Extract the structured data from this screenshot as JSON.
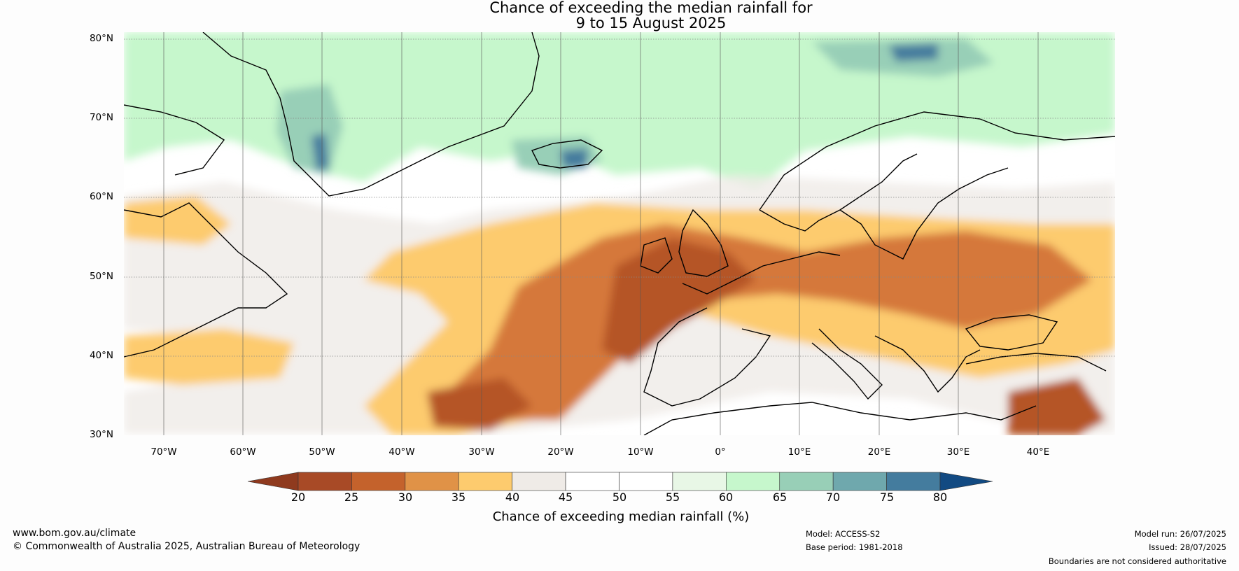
{
  "title_line1": "Chance of exceeding the median rainfall for",
  "title_line2": "9 to 15 August 2025",
  "lat_labels": [
    "80°N",
    "70°N",
    "60°N",
    "50°N",
    "40°N",
    "30°N"
  ],
  "lon_labels": [
    "70°W",
    "60°W",
    "50°W",
    "40°W",
    "30°W",
    "20°W",
    "10°W",
    "0°",
    "10°E",
    "20°E",
    "30°E",
    "40°E"
  ],
  "colorbar": {
    "label": "Chance of exceeding median rainfall (%)",
    "ticks": [
      "20",
      "25",
      "30",
      "35",
      "40",
      "45",
      "50",
      "55",
      "60",
      "65",
      "70",
      "75",
      "80"
    ],
    "under_color": "#8f3a1e",
    "over_color": "#124a82",
    "colors": [
      "#a84a26",
      "#c4622c",
      "#e09247",
      "#fdcb6e",
      "#efebe7",
      "#ffffff",
      "#ffffff",
      "#e8f7e6",
      "#c6f7cc",
      "#98cfb7",
      "#6fa8ad",
      "#447c9e"
    ]
  },
  "map_regions": {
    "dry_strong": "#b55428",
    "dry_moderate": "#d5783a",
    "dry_weak": "#fdcb6e",
    "neutral": "#efebe7",
    "wet_weak": "#c6f7cc",
    "wet_moderate": "#98cfb7",
    "wet_strong": "#447c9e"
  },
  "footer": {
    "website": "www.bom.gov.au/climate",
    "copyright": "© Commonwealth of Australia 2025, Australian Bureau of Meteorology",
    "model": "Model: ACCESS-S2",
    "base_period": "Base period: 1981-2018",
    "model_run": "Model run: 26/07/2025",
    "issued": "Issued: 28/07/2025",
    "disclaimer": "Boundaries are not considered authoritative"
  }
}
